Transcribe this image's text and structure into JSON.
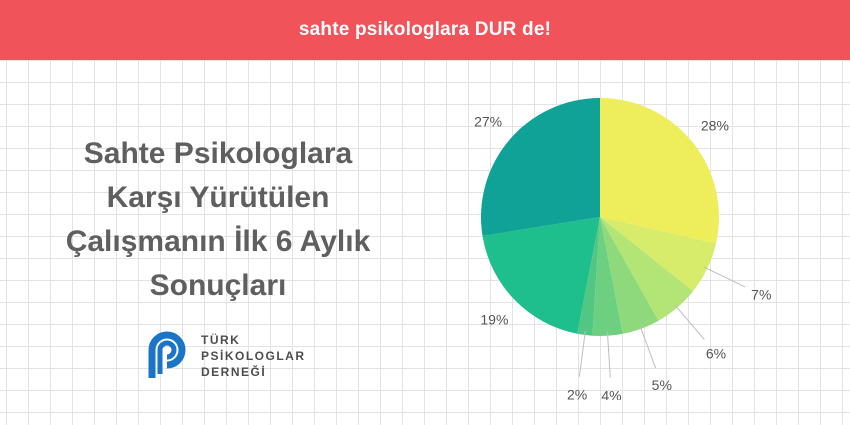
{
  "banner": {
    "text": "sahte psikologlara DUR de!"
  },
  "headline": {
    "lines": [
      "Sahte Psikologlara",
      "Karşı Yürütülen",
      "Çalışmanın İlk 6 Aylık",
      "Sonuçları"
    ]
  },
  "logo": {
    "lines": [
      "TÜRK",
      "PSİKOLOGLAR",
      "DERNEĞİ"
    ],
    "icon": "tpd-logo-icon",
    "color": "#1a75c9"
  },
  "colors": {
    "banner": "#f0545a",
    "headline": "#5f5f5f",
    "label": "#555555"
  },
  "chart_data": {
    "type": "pie",
    "start": "12 o'clock",
    "direction": "clockwise",
    "slices": [
      {
        "label": "28%",
        "value": 28,
        "color": "#eeee5c"
      },
      {
        "label": "7%",
        "value": 7,
        "color": "#d6ec6a"
      },
      {
        "label": "6%",
        "value": 6,
        "color": "#b2e476"
      },
      {
        "label": "5%",
        "value": 5,
        "color": "#8ed97c"
      },
      {
        "label": "4%",
        "value": 4,
        "color": "#6dd080"
      },
      {
        "label": "2%",
        "value": 2,
        "color": "#52c784"
      },
      {
        "label": "19%",
        "value": 19,
        "color": "#1fbf8d"
      },
      {
        "label": "27%",
        "value": 27,
        "color": "#10a296"
      }
    ]
  }
}
